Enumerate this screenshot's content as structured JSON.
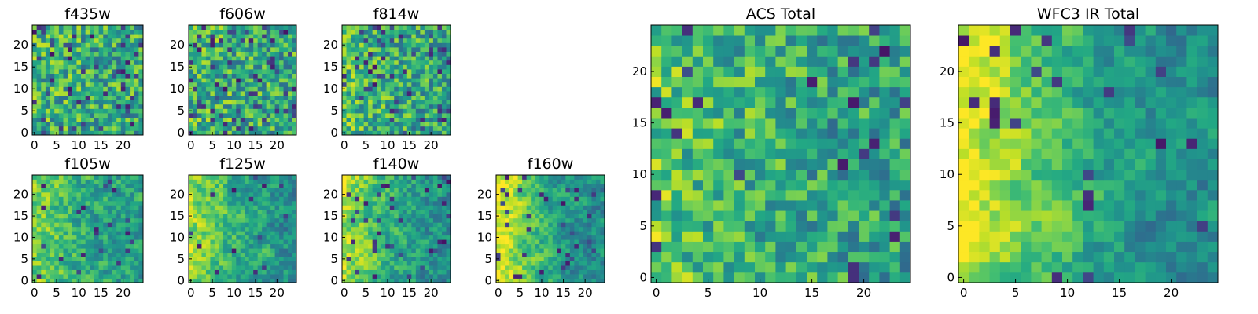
{
  "chart_data": [
    {
      "type": "heatmap",
      "title": "f435w",
      "grid": false,
      "xlim": [
        0,
        24
      ],
      "ylim": [
        0,
        24
      ],
      "xticks": [
        "0",
        "5",
        "10",
        "15",
        "20"
      ],
      "yticks": [
        "0",
        "5",
        "10",
        "15",
        "20"
      ],
      "colormap": "viridis",
      "smoothness": 0.0,
      "gradient_from_left": 0.05,
      "dark_spots": 0.08,
      "seed": 11
    },
    {
      "type": "heatmap",
      "title": "f606w",
      "grid": false,
      "xlim": [
        0,
        24
      ],
      "ylim": [
        0,
        24
      ],
      "xticks": [
        "0",
        "5",
        "10",
        "15",
        "20"
      ],
      "yticks": [
        "0",
        "5",
        "10",
        "15",
        "20"
      ],
      "colormap": "viridis",
      "smoothness": 0.0,
      "gradient_from_left": 0.08,
      "dark_spots": 0.09,
      "seed": 23
    },
    {
      "type": "heatmap",
      "title": "f814w",
      "grid": false,
      "xlim": [
        0,
        24
      ],
      "ylim": [
        0,
        24
      ],
      "xticks": [
        "0",
        "5",
        "10",
        "15",
        "20"
      ],
      "yticks": [
        "0",
        "5",
        "10",
        "15",
        "20"
      ],
      "colormap": "viridis",
      "smoothness": 0.05,
      "gradient_from_left": 0.12,
      "dark_spots": 0.08,
      "seed": 37
    },
    {
      "type": "heatmap",
      "title": "f105w",
      "grid": false,
      "xlim": [
        0,
        24
      ],
      "ylim": [
        0,
        24
      ],
      "xticks": [
        "0",
        "5",
        "10",
        "15",
        "20"
      ],
      "yticks": [
        "0",
        "5",
        "10",
        "15",
        "20"
      ],
      "colormap": "viridis",
      "smoothness": 0.45,
      "gradient_from_left": 0.3,
      "dark_spots": 0.04,
      "seed": 41
    },
    {
      "type": "heatmap",
      "title": "f125w",
      "grid": false,
      "xlim": [
        0,
        24
      ],
      "ylim": [
        0,
        24
      ],
      "xticks": [
        "0",
        "5",
        "10",
        "15",
        "20"
      ],
      "yticks": [
        "0",
        "5",
        "10",
        "15",
        "20"
      ],
      "colormap": "viridis",
      "smoothness": 0.5,
      "gradient_from_left": 0.35,
      "dark_spots": 0.03,
      "seed": 53
    },
    {
      "type": "heatmap",
      "title": "f140w",
      "grid": false,
      "xlim": [
        0,
        24
      ],
      "ylim": [
        0,
        24
      ],
      "xticks": [
        "0",
        "5",
        "10",
        "15",
        "20"
      ],
      "yticks": [
        "0",
        "5",
        "10",
        "15",
        "20"
      ],
      "colormap": "viridis",
      "smoothness": 0.5,
      "gradient_from_left": 0.45,
      "dark_spots": 0.04,
      "seed": 67
    },
    {
      "type": "heatmap",
      "title": "f160w",
      "grid": false,
      "xlim": [
        0,
        24
      ],
      "ylim": [
        0,
        24
      ],
      "xticks": [
        "0",
        "5",
        "10",
        "15",
        "20"
      ],
      "yticks": [
        "0",
        "5",
        "10",
        "15",
        "20"
      ],
      "colormap": "viridis",
      "smoothness": 0.55,
      "gradient_from_left": 0.55,
      "dark_spots": 0.06,
      "seed": 71
    },
    {
      "type": "heatmap",
      "title": "ACS Total",
      "grid": false,
      "xlim": [
        0,
        24
      ],
      "ylim": [
        0,
        24
      ],
      "xticks": [
        "0",
        "5",
        "10",
        "15",
        "20"
      ],
      "yticks": [
        "0",
        "5",
        "10",
        "15",
        "20"
      ],
      "colormap": "viridis",
      "smoothness": 0.15,
      "gradient_from_left": 0.2,
      "dark_spots": 0.04,
      "seed": 89
    },
    {
      "type": "heatmap",
      "title": "WFC3 IR Total",
      "grid": false,
      "xlim": [
        0,
        24
      ],
      "ylim": [
        0,
        24
      ],
      "xticks": [
        "0",
        "5",
        "10",
        "15",
        "20"
      ],
      "yticks": [
        "0",
        "5",
        "10",
        "15",
        "20"
      ],
      "colormap": "viridis",
      "smoothness": 0.6,
      "gradient_from_left": 0.6,
      "dark_spots": 0.04,
      "seed": 97
    }
  ]
}
